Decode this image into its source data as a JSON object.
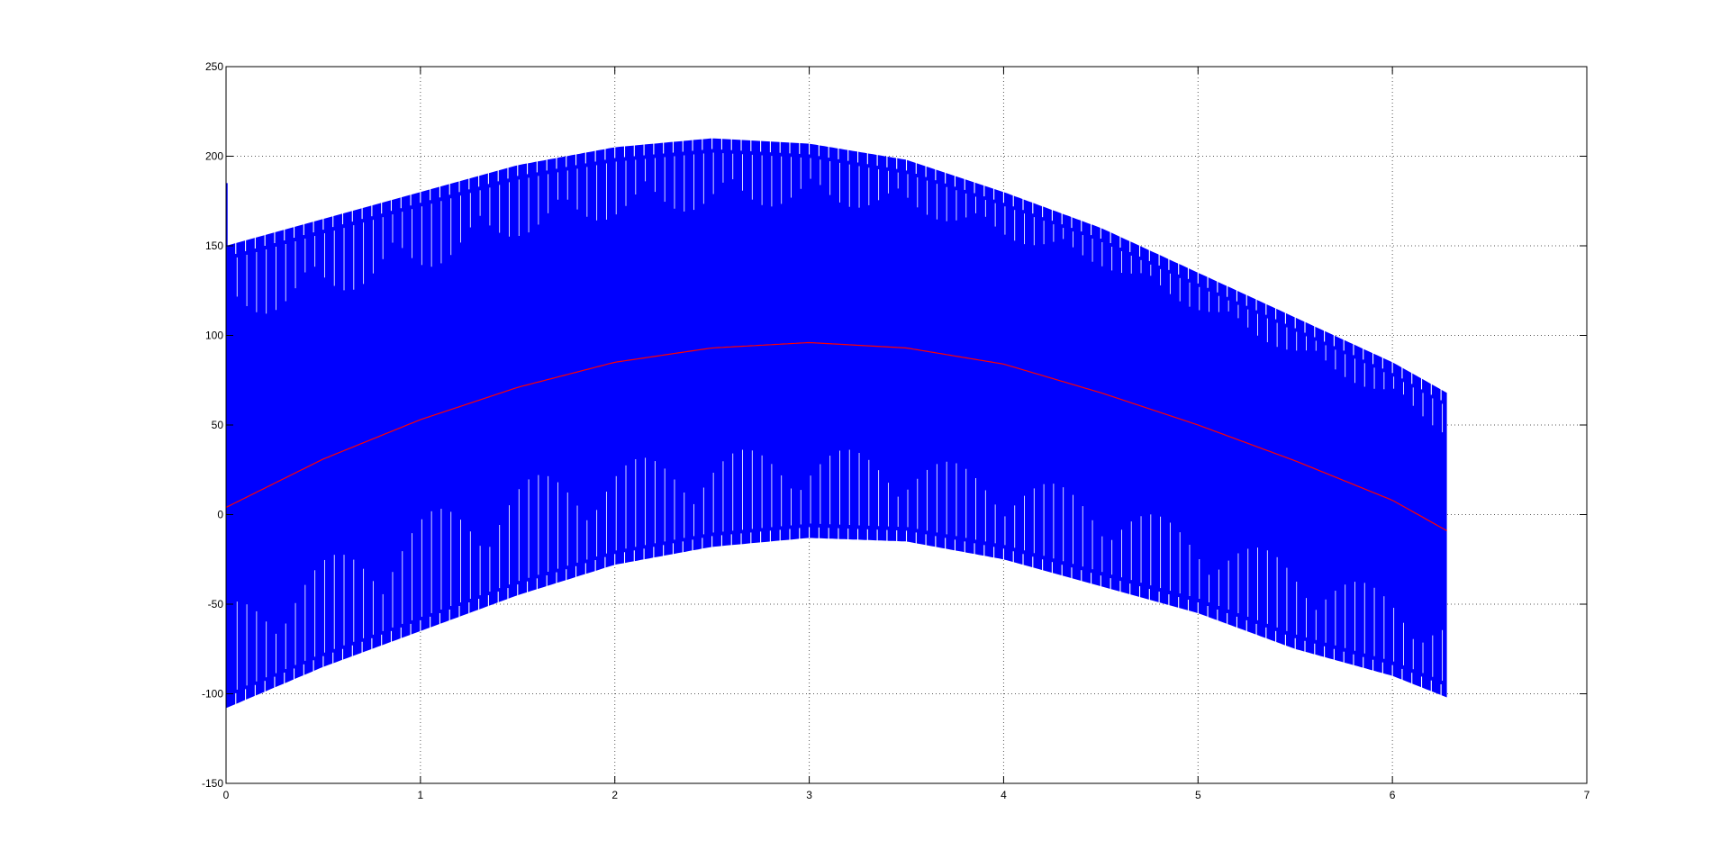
{
  "chart_data": {
    "type": "line",
    "title": "",
    "xlabel": "",
    "ylabel": "",
    "xlim": [
      0,
      7
    ],
    "ylim": [
      -150,
      250
    ],
    "xticks": [
      0,
      1,
      2,
      3,
      4,
      5,
      6,
      7
    ],
    "yticks": [
      -150,
      -100,
      -50,
      0,
      50,
      100,
      150,
      200,
      250
    ],
    "xtick_labels": [
      "0",
      "1",
      "2",
      "3",
      "4",
      "5",
      "6",
      "7"
    ],
    "ytick_labels": [
      "-150",
      "-100",
      "-50",
      "0",
      "50",
      "100",
      "150",
      "200",
      "250"
    ],
    "grid": true,
    "series": [
      {
        "color": "#0000ff",
        "style": "dense oscillating signal",
        "x": [
          0,
          0.5,
          1,
          1.5,
          2,
          2.5,
          3,
          3.5,
          4,
          4.5,
          5,
          5.5,
          6,
          6.28
        ],
        "upper_envelope": [
          150,
          165,
          180,
          195,
          205,
          210,
          207,
          198,
          180,
          160,
          135,
          110,
          85,
          68
        ],
        "lower_envelope": [
          -108,
          -85,
          -65,
          -45,
          -28,
          -18,
          -13,
          -15,
          -25,
          -40,
          -55,
          -75,
          -90,
          -102
        ],
        "inner_upper": [
          110,
          125,
          140,
          160,
          170,
          175,
          178,
          175,
          160,
          145,
          120,
          95,
          70,
          50
        ],
        "inner_lower": [
          -55,
          -30,
          -5,
          15,
          25,
          30,
          32,
          28,
          18,
          5,
          -15,
          -30,
          -50,
          -65
        ]
      },
      {
        "color": "#ff0000",
        "style": "thin line",
        "x": [
          0,
          0.5,
          1,
          1.5,
          2,
          2.5,
          3,
          3.5,
          4,
          4.5,
          5,
          5.5,
          6,
          6.28
        ],
        "values": [
          4,
          31,
          53,
          71,
          85,
          93,
          96,
          93,
          84,
          68,
          50,
          30,
          8,
          -9
        ]
      }
    ]
  }
}
